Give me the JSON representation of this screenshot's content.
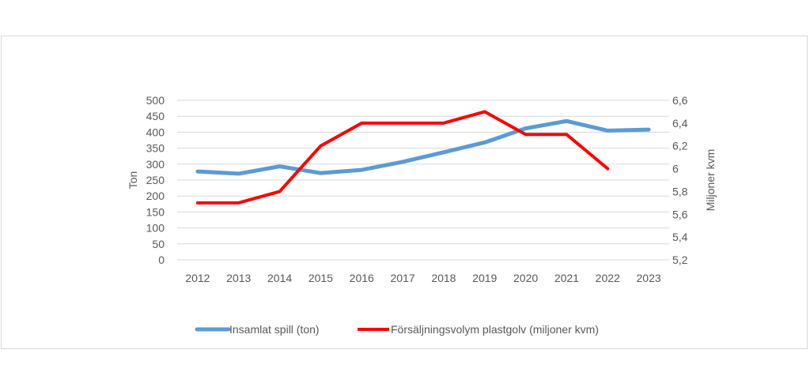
{
  "chart_data": {
    "type": "line",
    "title": "",
    "categories": [
      "2012",
      "2013",
      "2014",
      "2015",
      "2016",
      "2017",
      "2018",
      "2019",
      "2020",
      "2021",
      "2022",
      "2023"
    ],
    "ylabel": "Ton",
    "ylabel_right": "Miljoner kvm",
    "ylim": [
      0,
      500
    ],
    "yticks": [
      "0",
      "50",
      "100",
      "150",
      "200",
      "250",
      "300",
      "350",
      "400",
      "450",
      "500"
    ],
    "ylim_right": [
      5.2,
      6.6
    ],
    "yticks_right": [
      "5,2",
      "5,4",
      "5,6",
      "5,8",
      "6",
      "6,2",
      "6,4",
      "6,6"
    ],
    "grid": true,
    "legend": "bottom",
    "series": [
      {
        "name": "Insamlat spill (ton)",
        "axis": "left",
        "color": "#5b9bd5",
        "values": [
          277,
          270,
          293,
          272,
          282,
          307,
          337,
          368,
          412,
          435,
          405,
          408
        ]
      },
      {
        "name": "Försäljningsvolym plastgolv (miljoner kvm)",
        "axis": "right",
        "color": "#ff0000",
        "values": [
          5.7,
          5.7,
          5.8,
          6.2,
          6.4,
          6.4,
          6.4,
          6.5,
          6.3,
          6.3,
          6.0,
          null
        ]
      }
    ]
  }
}
